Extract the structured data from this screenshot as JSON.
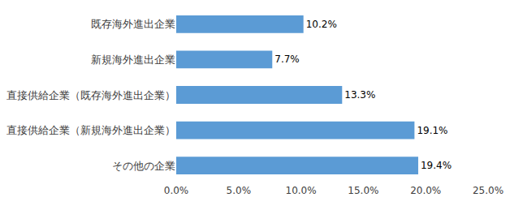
{
  "chart_data": {
    "type": "bar",
    "orientation": "horizontal",
    "categories": [
      "既存海外進出企業",
      "新規海外進出企業",
      "直接供給企業（既存海外進出企業）",
      "直接供給企業（新規海外進出企業）",
      "その他の企業"
    ],
    "values": [
      10.2,
      7.7,
      13.3,
      19.1,
      19.4
    ],
    "value_labels": [
      "10.2%",
      "7.7%",
      "13.3%",
      "19.1%",
      "19.4%"
    ],
    "data_labels": true,
    "color": "#5b9bd5",
    "xlim": [
      0,
      25
    ],
    "xticks": [
      {
        "value": 0,
        "label": "0.0%"
      },
      {
        "value": 5,
        "label": "5.0%"
      },
      {
        "value": 10,
        "label": "10.0%"
      },
      {
        "value": 15,
        "label": "15.0%"
      },
      {
        "value": 20,
        "label": "20.0%"
      },
      {
        "value": 25,
        "label": "25.0%"
      }
    ],
    "grid": false
  }
}
